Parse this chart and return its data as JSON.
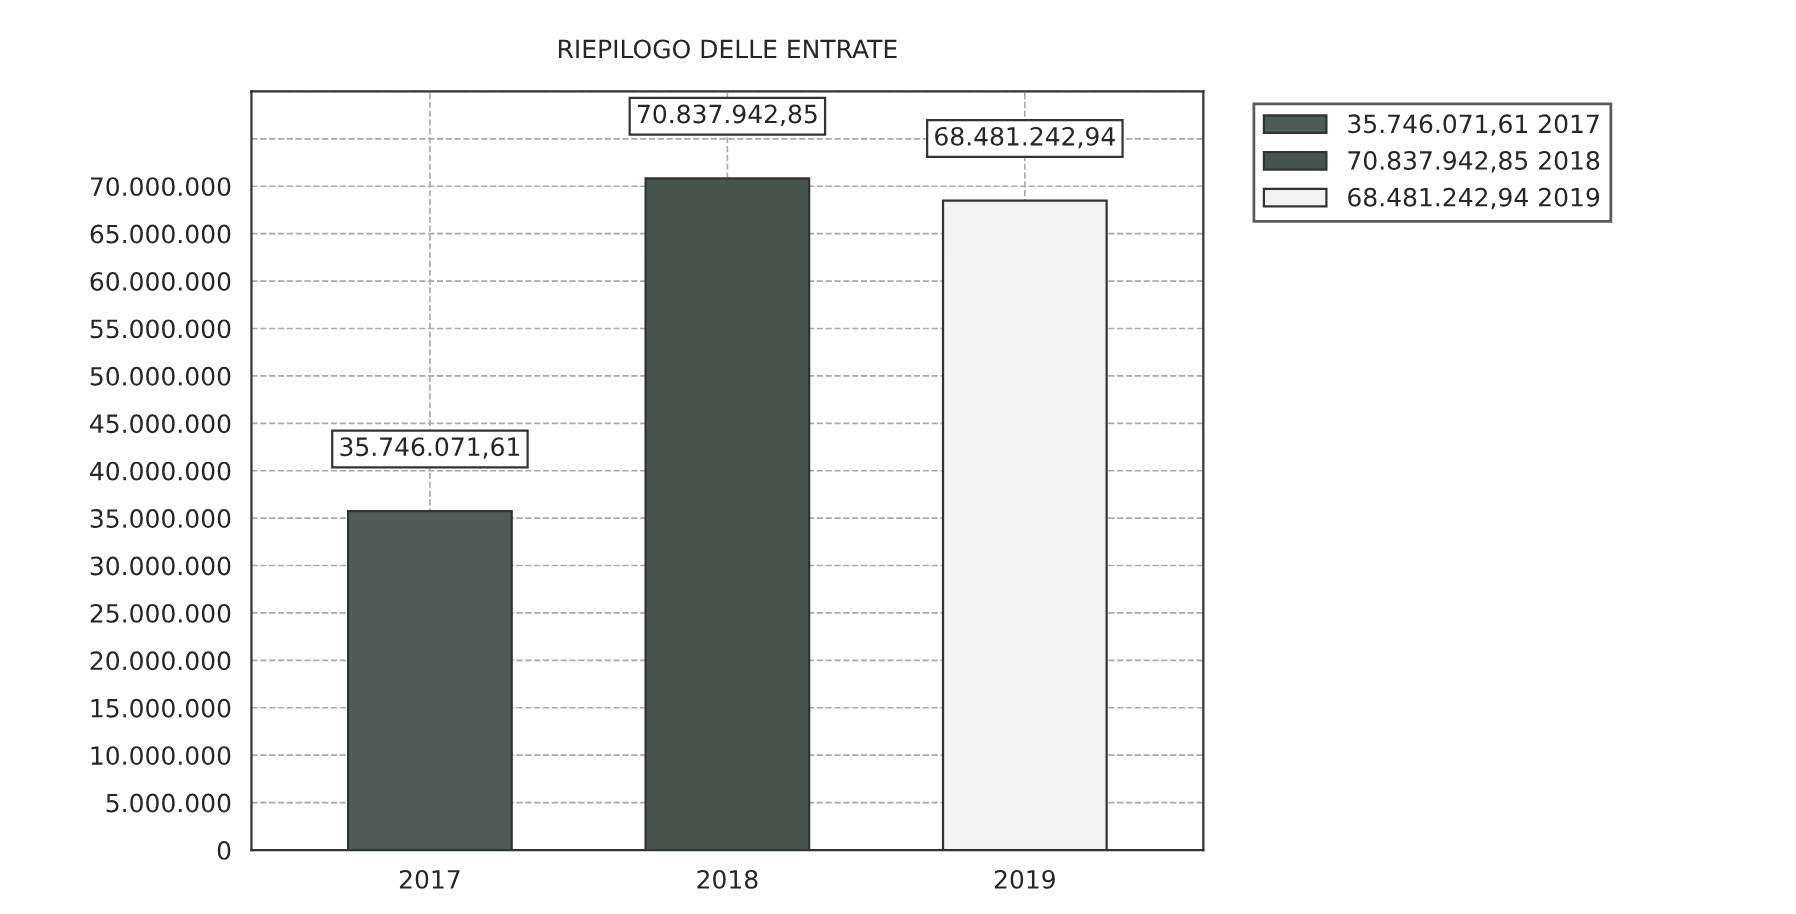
{
  "chart_data": {
    "type": "bar",
    "title": "RIEPILOGO DELLE ENTRATE",
    "categories": [
      "2017",
      "2018",
      "2019"
    ],
    "series": [
      {
        "name": "35.746.071,61 2017",
        "color": "#4f5c57",
        "values": [
          35746071.61,
          null,
          null
        ],
        "value_labels": [
          "35.746.071,61",
          null,
          null
        ]
      },
      {
        "name": "70.837.942,85 2018",
        "color": "#48554f",
        "values": [
          null,
          70837942.85,
          null
        ],
        "value_labels": [
          null,
          "70.837.942,85",
          null
        ]
      },
      {
        "name": "68.481.242,94 2019",
        "color": "#f3f3f3",
        "values": [
          null,
          null,
          68481242.94
        ],
        "value_labels": [
          null,
          null,
          "68.481.242,94"
        ]
      }
    ],
    "ylim": [
      0,
      80000000
    ],
    "yticks": [
      {
        "value": 0,
        "label": "0"
      },
      {
        "value": 5000000,
        "label": "5.000.000"
      },
      {
        "value": 10000000,
        "label": "10.000.000"
      },
      {
        "value": 15000000,
        "label": "15.000.000"
      },
      {
        "value": 20000000,
        "label": "20.000.000"
      },
      {
        "value": 25000000,
        "label": "25.000.000"
      },
      {
        "value": 30000000,
        "label": "30.000.000"
      },
      {
        "value": 35000000,
        "label": "35.000.000"
      },
      {
        "value": 40000000,
        "label": "40.000.000"
      },
      {
        "value": 45000000,
        "label": "45.000.000"
      },
      {
        "value": 50000000,
        "label": "50.000.000"
      },
      {
        "value": 55000000,
        "label": "55.000.000"
      },
      {
        "value": 60000000,
        "label": "60.000.000"
      },
      {
        "value": 65000000,
        "label": "65.000.000"
      },
      {
        "value": 70000000,
        "label": "70.000.000"
      },
      {
        "value": 75000000,
        "label": null
      },
      {
        "value": 80000000,
        "label": null
      }
    ],
    "grid": true,
    "legend": "top right"
  }
}
